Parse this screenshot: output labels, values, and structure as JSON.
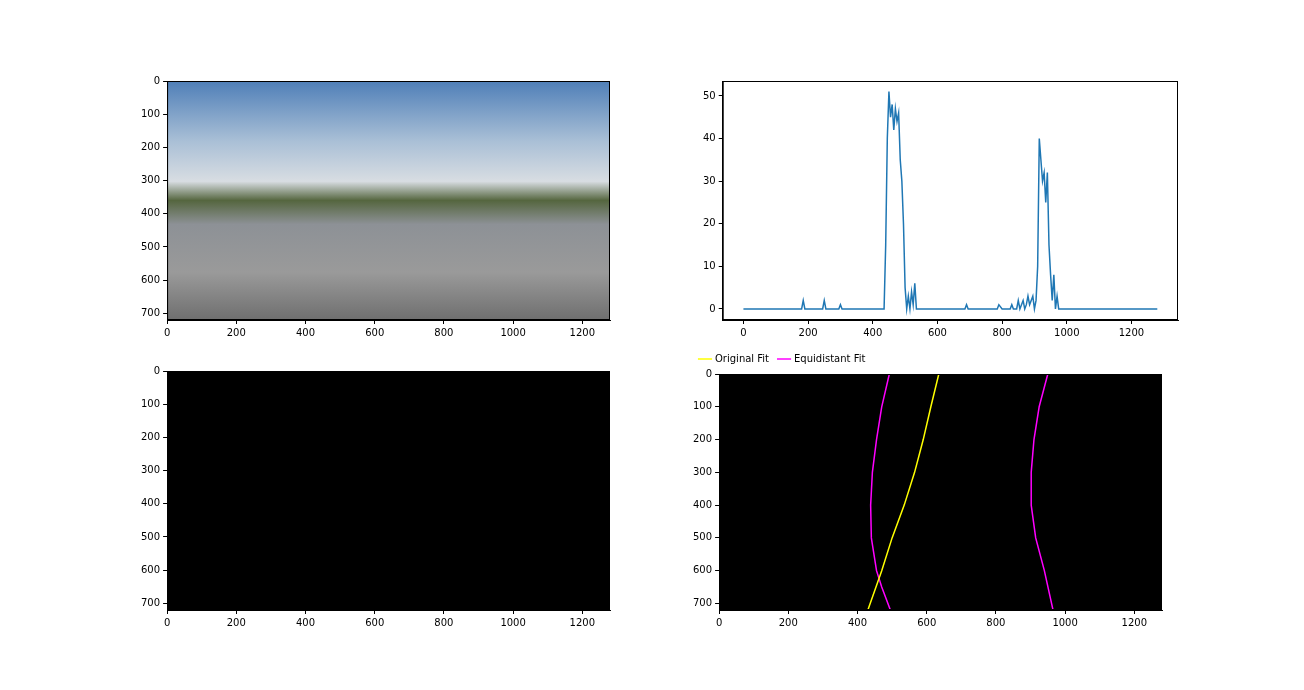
{
  "chart_data": [
    {
      "type": "image",
      "xlim": [
        0,
        1280
      ],
      "ylim": [
        720,
        0
      ],
      "xticks": [
        0,
        200,
        400,
        600,
        800,
        1000,
        1200
      ],
      "yticks": [
        0,
        100,
        200,
        300,
        400,
        500,
        600,
        700
      ]
    },
    {
      "type": "line",
      "x": [
        0,
        180,
        185,
        190,
        245,
        250,
        255,
        295,
        300,
        305,
        435,
        440,
        445,
        450,
        455,
        460,
        465,
        470,
        475,
        480,
        485,
        490,
        495,
        500,
        505,
        510,
        515,
        520,
        525,
        530,
        535,
        685,
        690,
        695,
        785,
        790,
        800,
        825,
        830,
        835,
        845,
        850,
        855,
        860,
        865,
        870,
        875,
        880,
        885,
        890,
        895,
        900,
        905,
        910,
        915,
        920,
        925,
        930,
        935,
        940,
        945,
        950,
        955,
        960,
        965,
        970,
        975,
        1280
      ],
      "series": [
        {
          "color": "#1f77b4",
          "values": [
            0,
            0,
            2,
            0,
            0,
            2,
            0,
            0,
            1,
            0,
            0,
            15,
            40,
            51,
            45,
            48,
            42,
            47,
            44,
            46,
            35,
            30,
            20,
            5,
            0,
            3,
            0,
            4,
            1,
            6,
            0,
            0,
            1,
            0,
            0,
            1,
            0,
            0,
            1,
            0,
            0,
            2,
            0,
            1,
            2,
            0,
            1,
            3,
            1,
            2,
            3,
            0,
            2,
            10,
            40,
            35,
            30,
            32,
            25,
            32,
            15,
            8,
            2,
            8,
            0,
            3,
            0,
            0
          ]
        }
      ],
      "xlim": [
        -64,
        1344
      ],
      "ylim": [
        -2.6,
        53.5
      ],
      "xticks": [
        0,
        200,
        400,
        600,
        800,
        1000,
        1200
      ],
      "yticks": [
        0,
        10,
        20,
        30,
        40,
        50
      ]
    },
    {
      "type": "image",
      "xlim": [
        0,
        1280
      ],
      "ylim": [
        720,
        0
      ],
      "xticks": [
        0,
        200,
        400,
        600,
        800,
        1000,
        1200
      ],
      "yticks": [
        0,
        100,
        200,
        300,
        400,
        500,
        600,
        700
      ]
    },
    {
      "type": "line",
      "legend": "upper left",
      "series": [
        {
          "name": "Original Fit",
          "color": "yellow",
          "x": [
            430,
            470,
            500,
            535,
            565,
            590,
            612,
            635
          ],
          "values": [
            720,
            600,
            500,
            400,
            300,
            200,
            100,
            0
          ]
        },
        {
          "name": "Equidistant Fit",
          "color": "magenta",
          "x": [
            495,
            470,
            455,
            440,
            438,
            443,
            455,
            470,
            492,
            null,
            965,
            940,
            915,
            902,
            902,
            910,
            925,
            950
          ],
          "values": [
            720,
            650,
            600,
            500,
            400,
            300,
            200,
            100,
            0,
            null,
            720,
            600,
            500,
            400,
            300,
            200,
            100,
            0
          ]
        }
      ],
      "xlim": [
        0,
        1280
      ],
      "ylim": [
        720,
        0
      ],
      "xticks": [
        0,
        200,
        400,
        600,
        800,
        1000,
        1200
      ],
      "yticks": [
        0,
        100,
        200,
        300,
        400,
        500,
        600,
        700
      ]
    }
  ]
}
